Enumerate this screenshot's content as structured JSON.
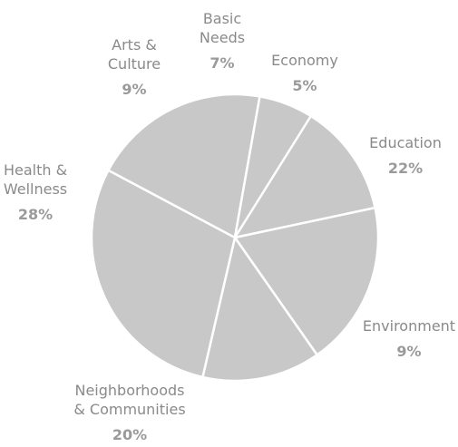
{
  "chart_data": {
    "type": "pie",
    "slice_color": "#c8c8c8",
    "label_color": "#8a8a8a",
    "slices": [
      {
        "label": [
          "Economy"
        ],
        "pct_label": "5%",
        "value": 5
      },
      {
        "label": [
          "Education"
        ],
        "pct_label": "22%",
        "value": 22
      },
      {
        "label": [
          "Environment"
        ],
        "pct_label": "9%",
        "value": 9
      },
      {
        "label": [
          "Neighborhoods",
          "& Communities"
        ],
        "pct_label": "20%",
        "value": 20
      },
      {
        "label": [
          "Health &",
          "Wellness"
        ],
        "pct_label": "28%",
        "value": 28
      },
      {
        "label": [
          "Arts &",
          "Culture"
        ],
        "pct_label": "9%",
        "value": 9
      },
      {
        "label": [
          "Basic",
          "Needs"
        ],
        "pct_label": "7%",
        "value": 7
      }
    ]
  }
}
